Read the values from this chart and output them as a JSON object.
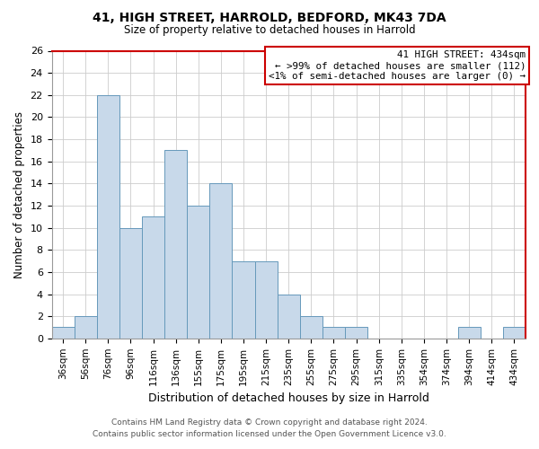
{
  "title": "41, HIGH STREET, HARROLD, BEDFORD, MK43 7DA",
  "subtitle": "Size of property relative to detached houses in Harrold",
  "xlabel": "Distribution of detached houses by size in Harrold",
  "ylabel": "Number of detached properties",
  "bar_color": "#c8d9ea",
  "bar_edge_color": "#6699bb",
  "categories": [
    "36sqm",
    "56sqm",
    "76sqm",
    "96sqm",
    "116sqm",
    "136sqm",
    "155sqm",
    "175sqm",
    "195sqm",
    "215sqm",
    "235sqm",
    "255sqm",
    "275sqm",
    "295sqm",
    "315sqm",
    "335sqm",
    "354sqm",
    "374sqm",
    "394sqm",
    "414sqm",
    "434sqm"
  ],
  "values": [
    1,
    2,
    22,
    10,
    11,
    17,
    12,
    14,
    7,
    7,
    4,
    2,
    1,
    1,
    0,
    0,
    0,
    0,
    1,
    0,
    1
  ],
  "ylim": [
    0,
    26
  ],
  "yticks": [
    0,
    2,
    4,
    6,
    8,
    10,
    12,
    14,
    16,
    18,
    20,
    22,
    24,
    26
  ],
  "box_title": "41 HIGH STREET: 434sqm",
  "box_line1": "← >99% of detached houses are smaller (112)",
  "box_line2": "<1% of semi-detached houses are larger (0) →",
  "box_edge_color": "#cc0000",
  "footer_line1": "Contains HM Land Registry data © Crown copyright and database right 2024.",
  "footer_line2": "Contains public sector information licensed under the Open Government Licence v3.0.",
  "grid_color": "#cccccc",
  "red_line_color": "#cc0000",
  "background_color": "#ffffff"
}
